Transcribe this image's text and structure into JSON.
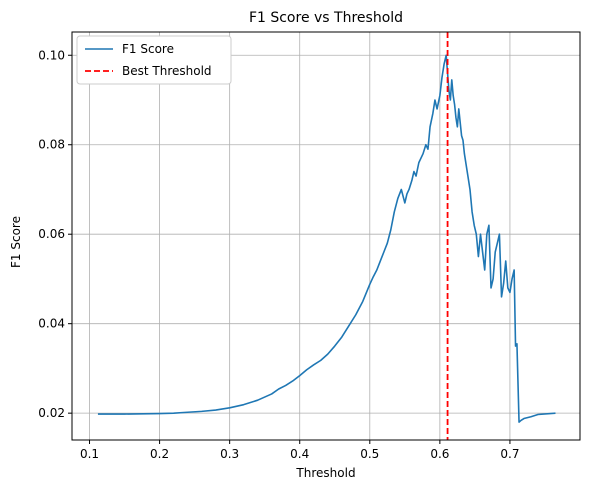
{
  "chart_data": {
    "type": "line",
    "title": "F1 Score vs Threshold",
    "xlabel": "Threshold",
    "ylabel": "F1 Score",
    "xlim": [
      0.075,
      0.8
    ],
    "ylim": [
      0.014,
      0.1052
    ],
    "xticks": [
      0.1,
      0.2,
      0.3,
      0.4,
      0.5,
      0.6,
      0.7
    ],
    "xtick_labels": [
      "0.1",
      "0.2",
      "0.3",
      "0.4",
      "0.5",
      "0.6",
      "0.7"
    ],
    "yticks": [
      0.02,
      0.04,
      0.06,
      0.08,
      0.1
    ],
    "ytick_labels": [
      "0.02",
      "0.04",
      "0.06",
      "0.08",
      "0.10"
    ],
    "grid": true,
    "legend_position": "top-left",
    "series": [
      {
        "name": "F1 Score",
        "color": "#1f77b4",
        "style": "solid",
        "x": [
          0.112,
          0.15,
          0.2,
          0.22,
          0.24,
          0.26,
          0.28,
          0.3,
          0.32,
          0.34,
          0.36,
          0.37,
          0.38,
          0.39,
          0.4,
          0.41,
          0.42,
          0.43,
          0.44,
          0.45,
          0.46,
          0.47,
          0.48,
          0.49,
          0.5,
          0.505,
          0.51,
          0.515,
          0.52,
          0.525,
          0.53,
          0.535,
          0.54,
          0.545,
          0.55,
          0.553,
          0.556,
          0.56,
          0.563,
          0.566,
          0.57,
          0.573,
          0.576,
          0.58,
          0.583,
          0.586,
          0.59,
          0.593,
          0.596,
          0.6,
          0.603,
          0.606,
          0.609,
          0.611,
          0.613,
          0.615,
          0.617,
          0.619,
          0.621,
          0.623,
          0.625,
          0.627,
          0.629,
          0.631,
          0.633,
          0.635,
          0.637,
          0.64,
          0.643,
          0.646,
          0.649,
          0.652,
          0.655,
          0.658,
          0.661,
          0.664,
          0.667,
          0.67,
          0.673,
          0.676,
          0.679,
          0.682,
          0.685,
          0.688,
          0.691,
          0.694,
          0.697,
          0.7,
          0.703,
          0.706,
          0.708,
          0.71,
          0.713,
          0.716,
          0.72,
          0.73,
          0.74,
          0.765
        ],
        "y": [
          0.0198,
          0.0198,
          0.0199,
          0.02,
          0.0202,
          0.0204,
          0.0207,
          0.0212,
          0.0219,
          0.0229,
          0.0243,
          0.0254,
          0.0262,
          0.0272,
          0.0284,
          0.0297,
          0.0308,
          0.0318,
          0.0332,
          0.035,
          0.037,
          0.0395,
          0.042,
          0.045,
          0.0488,
          0.0505,
          0.052,
          0.054,
          0.056,
          0.058,
          0.061,
          0.065,
          0.068,
          0.07,
          0.067,
          0.069,
          0.07,
          0.072,
          0.074,
          0.073,
          0.076,
          0.077,
          0.078,
          0.08,
          0.079,
          0.084,
          0.087,
          0.09,
          0.088,
          0.091,
          0.095,
          0.098,
          0.1,
          0.096,
          0.092,
          0.09,
          0.0945,
          0.091,
          0.089,
          0.086,
          0.084,
          0.088,
          0.085,
          0.082,
          0.081,
          0.078,
          0.076,
          0.073,
          0.07,
          0.065,
          0.062,
          0.06,
          0.055,
          0.06,
          0.056,
          0.052,
          0.06,
          0.062,
          0.048,
          0.05,
          0.056,
          0.058,
          0.06,
          0.046,
          0.049,
          0.054,
          0.048,
          0.047,
          0.05,
          0.052,
          0.035,
          0.0355,
          0.018,
          0.0184,
          0.0188,
          0.0192,
          0.0197,
          0.02
        ]
      },
      {
        "name": "Best Threshold",
        "color": "#ff0000",
        "style": "dashed",
        "x_value": 0.611
      }
    ]
  }
}
